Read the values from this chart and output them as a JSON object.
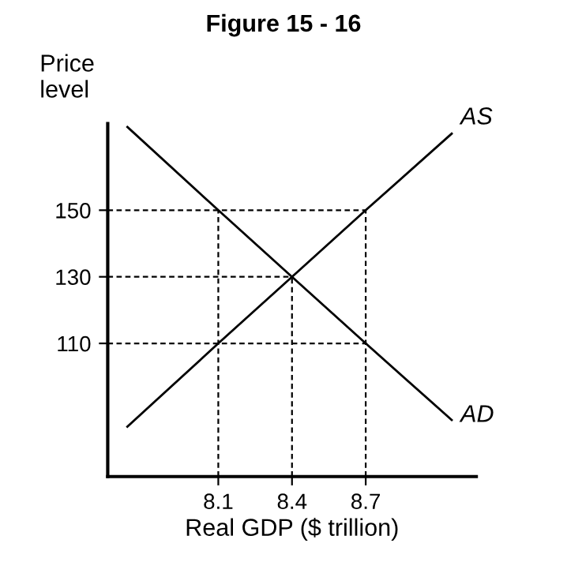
{
  "chart_data": {
    "type": "line",
    "title": "Figure 15 - 16",
    "xlabel": "Real GDP ($ trillion)",
    "ylabel": "Price\nlevel",
    "xlim": [
      7.65,
      9.15
    ],
    "ylim": [
      70,
      176
    ],
    "xticks": [
      8.1,
      8.4,
      8.7
    ],
    "yticks": [
      110,
      130,
      150
    ],
    "grid": false,
    "legend": false,
    "marker": "none",
    "series": [
      {
        "name": "AS",
        "color": "#000000",
        "line_style": "solid",
        "x": [
          7.73,
          8.1,
          8.4,
          8.7,
          9.05
        ],
        "values": [
          85,
          110,
          130,
          150,
          173
        ]
      },
      {
        "name": "AD",
        "color": "#000000",
        "line_style": "solid",
        "x": [
          7.73,
          8.1,
          8.4,
          8.7,
          9.05
        ],
        "values": [
          175,
          150,
          130,
          110,
          87
        ]
      },
      {
        "color": "#000000",
        "line_style": "dashed",
        "x": [
          8.1,
          8.1
        ],
        "values": [
          70,
          150
        ]
      },
      {
        "color": "#000000",
        "line_style": "dashed",
        "x": [
          8.4,
          8.4
        ],
        "values": [
          70,
          130
        ]
      },
      {
        "color": "#000000",
        "line_style": "dashed",
        "x": [
          8.7,
          8.7
        ],
        "values": [
          70,
          150
        ]
      },
      {
        "color": "#000000",
        "line_style": "dashed",
        "x": [
          7.65,
          8.7
        ],
        "values": [
          150,
          150
        ]
      },
      {
        "color": "#000000",
        "line_style": "dashed",
        "x": [
          7.65,
          8.4
        ],
        "values": [
          130,
          130
        ]
      },
      {
        "color": "#000000",
        "line_style": "dashed",
        "x": [
          7.65,
          8.7
        ],
        "values": [
          110,
          110
        ]
      }
    ]
  }
}
